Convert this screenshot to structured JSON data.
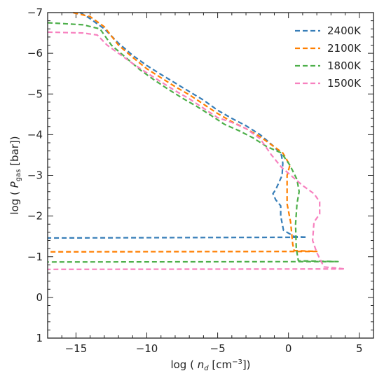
{
  "chart_data": {
    "type": "line",
    "xlabel_parts": [
      "log ( ",
      "n",
      "d",
      "  [cm",
      "−3",
      "])"
    ],
    "ylabel_parts": [
      "log ( ",
      "P",
      "gas",
      " [bar])"
    ],
    "xlim": [
      -17,
      6
    ],
    "ylim": [
      1,
      -7
    ],
    "y_inverted": true,
    "x_ticks": [
      -15,
      -10,
      -5,
      0,
      5
    ],
    "x_tick_labels": [
      "−15",
      "−10",
      "−5",
      "0",
      "5"
    ],
    "y_ticks": [
      -7,
      -6,
      -5,
      -4,
      -3,
      -2,
      -1,
      0,
      1
    ],
    "y_tick_labels": [
      "−7",
      "−6",
      "−5",
      "−4",
      "−3",
      "−2",
      "−1",
      "0",
      "1"
    ],
    "legend_position": "top-right",
    "line_style": "dashed",
    "series": [
      {
        "name": "2400K",
        "color": "#377eb8",
        "points": [
          [
            -14.7,
            -7.0
          ],
          [
            -14.0,
            -6.85
          ],
          [
            -13.0,
            -6.6
          ],
          [
            -12.0,
            -6.25
          ],
          [
            -11.0,
            -5.95
          ],
          [
            -10.0,
            -5.7
          ],
          [
            -9.0,
            -5.48
          ],
          [
            -8.0,
            -5.27
          ],
          [
            -7.0,
            -5.06
          ],
          [
            -6.0,
            -4.85
          ],
          [
            -5.0,
            -4.6
          ],
          [
            -4.0,
            -4.4
          ],
          [
            -3.0,
            -4.22
          ],
          [
            -2.0,
            -4.0
          ],
          [
            -1.0,
            -3.7
          ],
          [
            -0.5,
            -3.5
          ],
          [
            -0.4,
            -3.3
          ],
          [
            -0.45,
            -3.0
          ],
          [
            -0.9,
            -2.65
          ],
          [
            -1.1,
            -2.55
          ],
          [
            -0.9,
            -2.4
          ],
          [
            -0.55,
            -2.25
          ],
          [
            -0.55,
            -2.0
          ],
          [
            -0.35,
            -1.65
          ],
          [
            0.4,
            -1.5
          ],
          [
            1.3,
            -1.48
          ],
          [
            -17.0,
            -1.46
          ]
        ]
      },
      {
        "name": "2100K",
        "color": "#ff7f00",
        "points": [
          [
            -15.2,
            -7.0
          ],
          [
            -14.0,
            -6.9
          ],
          [
            -13.0,
            -6.65
          ],
          [
            -12.0,
            -6.2
          ],
          [
            -11.0,
            -5.9
          ],
          [
            -10.0,
            -5.62
          ],
          [
            -9.0,
            -5.4
          ],
          [
            -8.0,
            -5.18
          ],
          [
            -7.0,
            -4.98
          ],
          [
            -6.0,
            -4.75
          ],
          [
            -5.0,
            -4.52
          ],
          [
            -4.0,
            -4.32
          ],
          [
            -3.0,
            -4.15
          ],
          [
            -2.0,
            -3.95
          ],
          [
            -1.0,
            -3.7
          ],
          [
            -0.4,
            -3.55
          ],
          [
            0.1,
            -3.25
          ],
          [
            -0.1,
            -3.0
          ],
          [
            -0.1,
            -2.3
          ],
          [
            0.15,
            -1.85
          ],
          [
            0.3,
            -1.3
          ],
          [
            0.4,
            -1.15
          ],
          [
            2.0,
            -1.13
          ],
          [
            -17.0,
            -1.12
          ]
        ]
      },
      {
        "name": "1800K",
        "color": "#4daf4a",
        "points": [
          [
            -17.0,
            -6.75
          ],
          [
            -14.5,
            -6.7
          ],
          [
            -13.3,
            -6.6
          ],
          [
            -12.5,
            -6.2
          ],
          [
            -11.5,
            -5.9
          ],
          [
            -10.5,
            -5.6
          ],
          [
            -9.5,
            -5.35
          ],
          [
            -8.5,
            -5.12
          ],
          [
            -7.5,
            -4.9
          ],
          [
            -6.5,
            -4.7
          ],
          [
            -5.5,
            -4.48
          ],
          [
            -4.5,
            -4.25
          ],
          [
            -3.5,
            -4.1
          ],
          [
            -2.5,
            -3.92
          ],
          [
            -1.5,
            -3.7
          ],
          [
            -0.5,
            -3.55
          ],
          [
            0.1,
            -3.25
          ],
          [
            0.6,
            -2.9
          ],
          [
            0.75,
            -2.6
          ],
          [
            0.6,
            -2.3
          ],
          [
            0.5,
            -1.8
          ],
          [
            0.55,
            -1.2
          ],
          [
            0.7,
            -0.9
          ],
          [
            3.5,
            -0.88
          ],
          [
            -17.0,
            -0.87
          ]
        ]
      },
      {
        "name": "1500K",
        "color": "#f781bf",
        "points": [
          [
            -17.0,
            -6.52
          ],
          [
            -14.5,
            -6.5
          ],
          [
            -13.5,
            -6.45
          ],
          [
            -12.8,
            -6.2
          ],
          [
            -12.0,
            -6.0
          ],
          [
            -11.0,
            -5.75
          ],
          [
            -10.0,
            -5.52
          ],
          [
            -9.0,
            -5.3
          ],
          [
            -8.0,
            -5.08
          ],
          [
            -7.0,
            -4.88
          ],
          [
            -6.0,
            -4.65
          ],
          [
            -5.0,
            -4.42
          ],
          [
            -4.0,
            -4.3
          ],
          [
            -3.0,
            -4.15
          ],
          [
            -2.0,
            -3.9
          ],
          [
            -1.6,
            -3.7
          ],
          [
            -1.2,
            -3.5
          ],
          [
            -0.5,
            -3.2
          ],
          [
            0.5,
            -2.9
          ],
          [
            1.0,
            -2.75
          ],
          [
            1.8,
            -2.55
          ],
          [
            2.2,
            -2.35
          ],
          [
            2.2,
            -2.05
          ],
          [
            1.8,
            -1.85
          ],
          [
            1.7,
            -1.4
          ],
          [
            2.0,
            -1.1
          ],
          [
            2.5,
            -0.75
          ],
          [
            4.0,
            -0.7
          ],
          [
            -17.0,
            -0.69
          ]
        ]
      }
    ]
  }
}
